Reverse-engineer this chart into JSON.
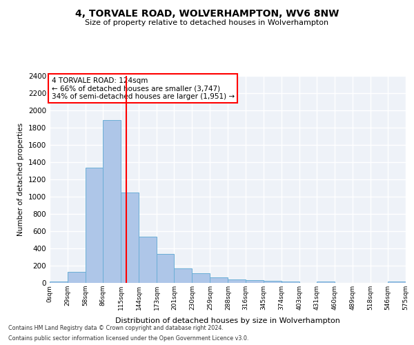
{
  "title": "4, TORVALE ROAD, WOLVERHAMPTON, WV6 8NW",
  "subtitle": "Size of property relative to detached houses in Wolverhampton",
  "xlabel": "Distribution of detached houses by size in Wolverhampton",
  "ylabel": "Number of detached properties",
  "bar_color": "#aec6e8",
  "bar_edge_color": "#6aaed6",
  "background_color": "#eef2f8",
  "grid_color": "#ffffff",
  "vline_color": "red",
  "vline_x": 124,
  "annotation_text": "4 TORVALE ROAD: 124sqm\n← 66% of detached houses are smaller (3,747)\n34% of semi-detached houses are larger (1,951) →",
  "annotation_box_color": "white",
  "annotation_box_edge": "red",
  "bin_edges": [
    0,
    29,
    58,
    86,
    115,
    144,
    173,
    201,
    230,
    259,
    288,
    316,
    345,
    374,
    403,
    431,
    460,
    489,
    518,
    546,
    575
  ],
  "bar_heights": [
    15,
    125,
    1340,
    1890,
    1045,
    540,
    335,
    170,
    110,
    65,
    40,
    35,
    25,
    20,
    0,
    15,
    0,
    0,
    0,
    20
  ],
  "ylim": [
    0,
    2400
  ],
  "yticks": [
    0,
    200,
    400,
    600,
    800,
    1000,
    1200,
    1400,
    1600,
    1800,
    2000,
    2200,
    2400
  ],
  "xtick_labels": [
    "0sqm",
    "29sqm",
    "58sqm",
    "86sqm",
    "115sqm",
    "144sqm",
    "173sqm",
    "201sqm",
    "230sqm",
    "259sqm",
    "288sqm",
    "316sqm",
    "345sqm",
    "374sqm",
    "403sqm",
    "431sqm",
    "460sqm",
    "489sqm",
    "518sqm",
    "546sqm",
    "575sqm"
  ],
  "footer1": "Contains HM Land Registry data © Crown copyright and database right 2024.",
  "footer2": "Contains public sector information licensed under the Open Government Licence v3.0."
}
